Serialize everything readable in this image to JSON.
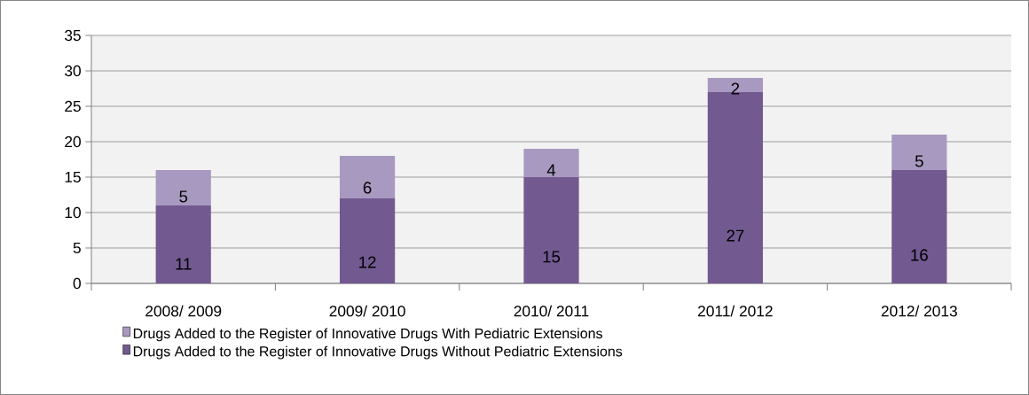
{
  "chart_data": {
    "type": "bar",
    "stacked": true,
    "categories": [
      "2008/ 2009",
      "2009/ 2010",
      "2010/ 2011",
      "2011/ 2012",
      "2012/ 2013"
    ],
    "series": [
      {
        "name": "Drugs Added to the Register of Innovative Drugs Without Pediatric Extensions",
        "color": "#725990",
        "values": [
          11,
          12,
          15,
          27,
          16
        ]
      },
      {
        "name": "Drugs Added to the Register of Innovative Drugs With Pediatric Extensions",
        "color": "#a899c0",
        "values": [
          5,
          6,
          4,
          2,
          5
        ]
      }
    ],
    "ylim": [
      0,
      35
    ],
    "yticks": [
      0,
      5,
      10,
      15,
      20,
      25,
      30,
      35
    ],
    "grid": "y",
    "legend": "bottom",
    "data_labels": true
  }
}
